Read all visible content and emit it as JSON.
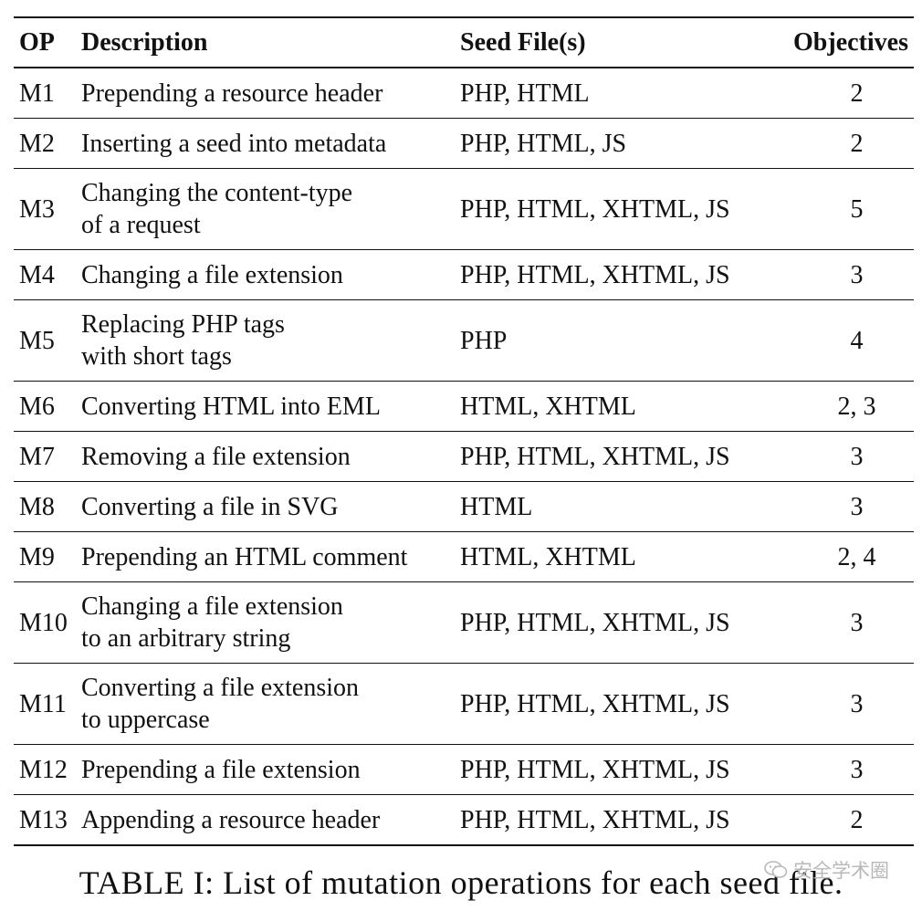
{
  "table": {
    "headers": {
      "op": "OP",
      "description": "Description",
      "seed": "Seed File(s)",
      "objectives": "Objectives"
    },
    "rows": [
      {
        "op": "M1",
        "desc": [
          "Prepending a resource header"
        ],
        "seed": "PHP, HTML",
        "obj": "2"
      },
      {
        "op": "M2",
        "desc": [
          "Inserting a seed into metadata"
        ],
        "seed": "PHP, HTML, JS",
        "obj": "2"
      },
      {
        "op": "M3",
        "desc": [
          "Changing the content-type",
          "of a request"
        ],
        "seed": "PHP, HTML, XHTML, JS",
        "obj": "5"
      },
      {
        "op": "M4",
        "desc": [
          "Changing a file extension"
        ],
        "seed": "PHP, HTML, XHTML, JS",
        "obj": "3"
      },
      {
        "op": "M5",
        "desc": [
          "Replacing PHP tags",
          "with short tags"
        ],
        "seed": "PHP",
        "obj": "4"
      },
      {
        "op": "M6",
        "desc": [
          "Converting HTML into EML"
        ],
        "seed": "HTML, XHTML",
        "obj": "2, 3"
      },
      {
        "op": "M7",
        "desc": [
          "Removing a file extension"
        ],
        "seed": "PHP, HTML, XHTML, JS",
        "obj": "3"
      },
      {
        "op": "M8",
        "desc": [
          "Converting a file in SVG"
        ],
        "seed": "HTML",
        "obj": "3"
      },
      {
        "op": "M9",
        "desc": [
          "Prepending an HTML comment"
        ],
        "seed": "HTML, XHTML",
        "obj": "2, 4"
      },
      {
        "op": "M10",
        "desc": [
          "Changing a file extension",
          "to an arbitrary string"
        ],
        "seed": "PHP, HTML, XHTML, JS",
        "obj": "3"
      },
      {
        "op": "M11",
        "desc": [
          "Converting a file extension",
          "to uppercase"
        ],
        "seed": "PHP, HTML, XHTML, JS",
        "obj": "3"
      },
      {
        "op": "M12",
        "desc": [
          "Prepending a file extension"
        ],
        "seed": "PHP, HTML, XHTML, JS",
        "obj": "3"
      },
      {
        "op": "M13",
        "desc": [
          "Appending a resource header"
        ],
        "seed": "PHP, HTML, XHTML, JS",
        "obj": "2"
      }
    ]
  },
  "caption": "TABLE I: List of mutation operations for each seed file.",
  "watermark": {
    "text": "安全学术圈",
    "icon": "wechat-icon"
  }
}
